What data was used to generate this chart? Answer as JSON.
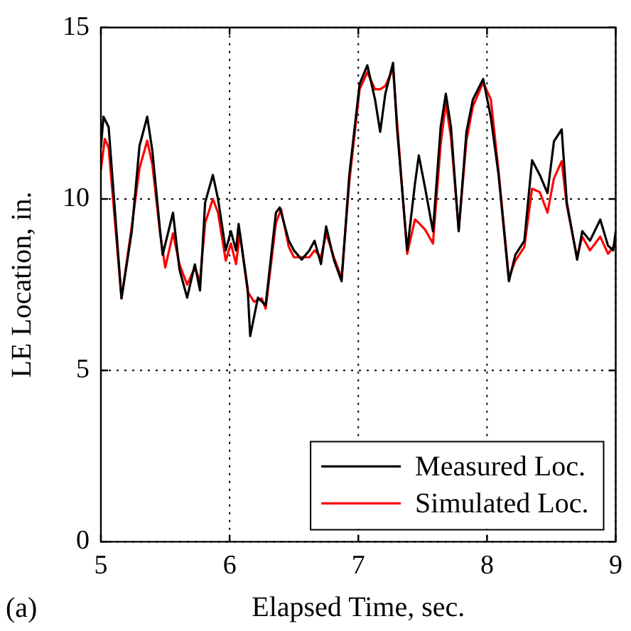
{
  "chart_data": {
    "type": "line",
    "xlabel": "Elapsed Time, sec.",
    "ylabel": "LE Location, in.",
    "xlim": [
      5,
      9
    ],
    "xticks": [
      5,
      6,
      7,
      8,
      9
    ],
    "ylim": [
      0,
      15
    ],
    "yticks": [
      0,
      5,
      10,
      15
    ],
    "grid": true,
    "legend": "bottom right",
    "marker": "none",
    "line_style": "solid",
    "annotations": [
      "(a)"
    ],
    "series": [
      {
        "name": "Measured Loc.",
        "color": "#000000",
        "x": [
          5.0,
          5.02,
          5.06,
          5.16,
          5.24,
          5.3,
          5.36,
          5.4,
          5.46,
          5.48,
          5.56,
          5.61,
          5.67,
          5.73,
          5.77,
          5.81,
          5.87,
          5.91,
          5.97,
          6.01,
          6.05,
          6.07,
          6.14,
          6.16,
          6.22,
          6.28,
          6.36,
          6.39,
          6.46,
          6.5,
          6.56,
          6.62,
          6.66,
          6.71,
          6.75,
          6.81,
          6.87,
          6.93,
          7.01,
          7.07,
          7.13,
          7.17,
          7.21,
          7.27,
          7.3,
          7.38,
          7.44,
          7.47,
          7.52,
          7.58,
          7.64,
          7.68,
          7.72,
          7.78,
          7.84,
          7.89,
          7.97,
          8.03,
          8.09,
          8.17,
          8.22,
          8.29,
          8.35,
          8.41,
          8.47,
          8.52,
          8.58,
          8.62,
          8.7,
          8.74,
          8.8,
          8.88,
          8.94,
          8.98,
          9.0
        ],
        "values": [
          11.5,
          12.4,
          12.1,
          7.1,
          9.06,
          11.55,
          12.4,
          11.4,
          9.06,
          8.37,
          9.6,
          7.95,
          7.12,
          8.09,
          7.33,
          9.9,
          10.7,
          10.0,
          8.5,
          9.06,
          8.5,
          9.27,
          7.4,
          6.0,
          7.12,
          6.9,
          9.6,
          9.75,
          8.78,
          8.5,
          8.23,
          8.5,
          8.78,
          8.1,
          9.2,
          8.23,
          7.6,
          10.7,
          13.35,
          13.9,
          12.9,
          11.96,
          13.07,
          13.97,
          12.1,
          8.5,
          10.44,
          11.27,
          10.3,
          9.06,
          12.1,
          13.07,
          12.1,
          9.06,
          11.96,
          12.9,
          13.5,
          12.38,
          10.7,
          7.6,
          8.37,
          8.78,
          11.13,
          10.7,
          10.17,
          11.68,
          12.03,
          9.9,
          8.23,
          9.06,
          8.78,
          9.4,
          8.64,
          8.5,
          9.06
        ]
      },
      {
        "name": "Simulated Loc.",
        "color": "#ff0000",
        "x": [
          5.0,
          5.03,
          5.06,
          5.16,
          5.24,
          5.3,
          5.36,
          5.4,
          5.46,
          5.5,
          5.56,
          5.61,
          5.67,
          5.73,
          5.77,
          5.81,
          5.87,
          5.91,
          5.97,
          6.01,
          6.05,
          6.08,
          6.14,
          6.19,
          6.25,
          6.28,
          6.36,
          6.4,
          6.46,
          6.5,
          6.56,
          6.62,
          6.66,
          6.71,
          6.75,
          6.81,
          6.87,
          6.93,
          7.01,
          7.07,
          7.13,
          7.17,
          7.21,
          7.27,
          7.3,
          7.38,
          7.44,
          7.47,
          7.52,
          7.58,
          7.64,
          7.68,
          7.72,
          7.78,
          7.84,
          7.89,
          7.97,
          8.03,
          8.09,
          8.17,
          8.22,
          8.29,
          8.35,
          8.41,
          8.47,
          8.52,
          8.58,
          8.62,
          8.7,
          8.74,
          8.8,
          8.88,
          8.94,
          9.0
        ],
        "values": [
          10.85,
          11.75,
          11.5,
          7.1,
          9.2,
          10.9,
          11.7,
          11.0,
          9.0,
          8.0,
          9.0,
          8.1,
          7.5,
          8.0,
          7.6,
          9.3,
          10.0,
          9.6,
          8.2,
          8.7,
          8.1,
          9.0,
          7.3,
          7.0,
          7.1,
          6.8,
          9.3,
          9.7,
          8.6,
          8.3,
          8.3,
          8.3,
          8.5,
          8.3,
          9.0,
          8.3,
          7.7,
          10.5,
          13.2,
          13.7,
          13.2,
          13.2,
          13.3,
          13.8,
          12.3,
          8.4,
          9.4,
          9.3,
          9.1,
          8.7,
          11.6,
          12.8,
          11.8,
          9.1,
          11.7,
          12.7,
          13.4,
          12.9,
          10.8,
          7.7,
          8.2,
          8.6,
          10.3,
          10.2,
          9.6,
          10.6,
          11.1,
          9.8,
          8.3,
          8.9,
          8.5,
          8.9,
          8.4,
          8.7
        ]
      }
    ]
  }
}
